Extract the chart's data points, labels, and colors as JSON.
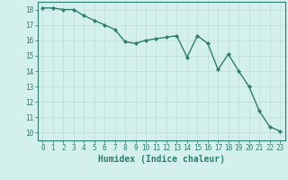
{
  "x": [
    0,
    1,
    2,
    3,
    4,
    5,
    6,
    7,
    8,
    9,
    10,
    11,
    12,
    13,
    14,
    15,
    16,
    17,
    18,
    19,
    20,
    21,
    22,
    23
  ],
  "y": [
    18.1,
    18.1,
    18.0,
    18.0,
    17.6,
    17.3,
    17.0,
    16.7,
    15.9,
    15.8,
    16.0,
    16.1,
    16.2,
    16.3,
    14.9,
    16.3,
    15.8,
    14.1,
    15.1,
    14.0,
    13.0,
    11.4,
    10.4,
    10.1
  ],
  "line_color": "#2e7d6e",
  "marker": "D",
  "marker_size": 2.0,
  "line_width": 1.0,
  "xlabel": "Humidex (Indice chaleur)",
  "xlabel_fontsize": 7,
  "xlim": [
    -0.5,
    23.5
  ],
  "ylim": [
    9.5,
    18.5
  ],
  "yticks": [
    10,
    11,
    12,
    13,
    14,
    15,
    16,
    17,
    18
  ],
  "xticks": [
    0,
    1,
    2,
    3,
    4,
    5,
    6,
    7,
    8,
    9,
    10,
    11,
    12,
    13,
    14,
    15,
    16,
    17,
    18,
    19,
    20,
    21,
    22,
    23
  ],
  "bg_color": "#d4f0ec",
  "grid_color": "#c0ddd8",
  "tick_color": "#2e7d6e",
  "tick_fontsize": 5.5,
  "spine_color": "#2e7d6e"
}
